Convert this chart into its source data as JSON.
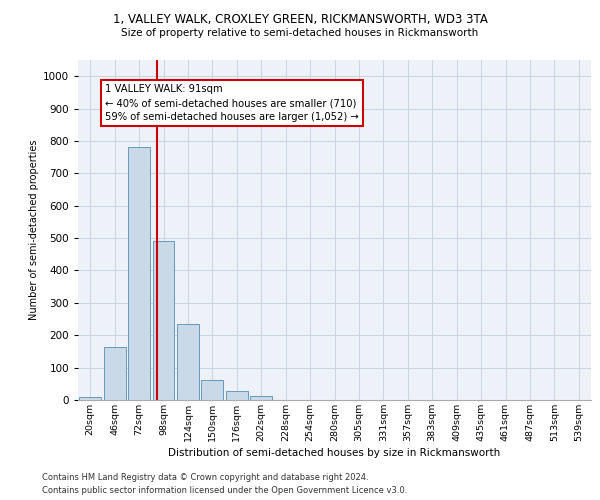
{
  "title1": "1, VALLEY WALK, CROXLEY GREEN, RICKMANSWORTH, WD3 3TA",
  "title2": "Size of property relative to semi-detached houses in Rickmansworth",
  "xlabel": "Distribution of semi-detached houses by size in Rickmansworth",
  "ylabel": "Number of semi-detached properties",
  "categories": [
    "20sqm",
    "46sqm",
    "72sqm",
    "98sqm",
    "124sqm",
    "150sqm",
    "176sqm",
    "202sqm",
    "228sqm",
    "254sqm",
    "280sqm",
    "305sqm",
    "331sqm",
    "357sqm",
    "383sqm",
    "409sqm",
    "435sqm",
    "461sqm",
    "487sqm",
    "513sqm",
    "539sqm"
  ],
  "values": [
    10,
    163,
    782,
    490,
    235,
    63,
    28,
    12,
    0,
    0,
    0,
    0,
    0,
    0,
    0,
    0,
    0,
    0,
    0,
    0,
    0
  ],
  "bar_color": "#c9d9e8",
  "bar_edge_color": "#6699bb",
  "annotation_title": "1 VALLEY WALK: 91sqm",
  "annotation_line1": "← 40% of semi-detached houses are smaller (710)",
  "annotation_line2": "59% of semi-detached houses are larger (1,052) →",
  "annotation_box_color": "#ffffff",
  "annotation_box_edge": "#cc0000",
  "vline_color": "#cc0000",
  "grid_color": "#c8d4e3",
  "bg_color": "#eef2f8",
  "ylim_max": 1050,
  "yticks": [
    0,
    100,
    200,
    300,
    400,
    500,
    600,
    700,
    800,
    900,
    1000
  ],
  "footer1": "Contains HM Land Registry data © Crown copyright and database right 2024.",
  "footer2": "Contains public sector information licensed under the Open Government Licence v3.0."
}
